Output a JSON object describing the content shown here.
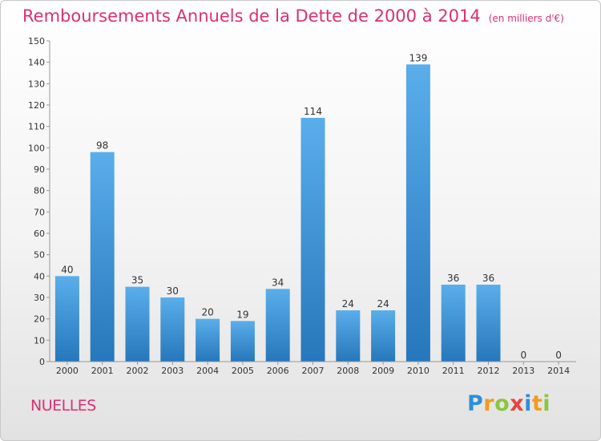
{
  "title": "Remboursements Annuels de la Dette de 2000 à 2014",
  "unit": "(en milliers d'€)",
  "commune": "NUELLES",
  "logo": {
    "letters": [
      "P",
      "r",
      "o",
      "x",
      "i",
      "t",
      "i"
    ],
    "colors": [
      "#2f8fd8",
      "#f29b1d",
      "#8cc63f",
      "#e9443d",
      "#2f8fd8",
      "#f29b1d",
      "#8cc63f"
    ]
  },
  "colors": {
    "bar_top": "#5aaeea",
    "bar_bottom": "#2677bb",
    "title": "#dc2f75"
  },
  "chart_data": {
    "type": "bar",
    "title": "Remboursements Annuels de la Dette de 2000 à 2014",
    "xlabel": "",
    "ylabel": "",
    "categories": [
      "2000",
      "2001",
      "2002",
      "2003",
      "2004",
      "2005",
      "2006",
      "2007",
      "2008",
      "2009",
      "2010",
      "2011",
      "2012",
      "2013",
      "2014"
    ],
    "values": [
      40,
      98,
      35,
      30,
      20,
      19,
      34,
      114,
      24,
      24,
      139,
      36,
      36,
      0,
      0
    ],
    "ylim": [
      0,
      150
    ],
    "yticks": [
      0,
      10,
      20,
      30,
      40,
      50,
      60,
      70,
      80,
      90,
      100,
      110,
      120,
      130,
      140,
      150
    ],
    "grid": false,
    "legend": "none"
  }
}
